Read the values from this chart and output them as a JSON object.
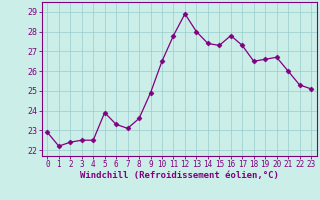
{
  "x": [
    0,
    1,
    2,
    3,
    4,
    5,
    6,
    7,
    8,
    9,
    10,
    11,
    12,
    13,
    14,
    15,
    16,
    17,
    18,
    19,
    20,
    21,
    22,
    23
  ],
  "y": [
    22.9,
    22.2,
    22.4,
    22.5,
    22.5,
    23.9,
    23.3,
    23.1,
    23.6,
    24.9,
    26.5,
    27.8,
    28.9,
    28.0,
    27.4,
    27.3,
    27.8,
    27.3,
    26.5,
    26.6,
    26.7,
    26.0,
    25.3,
    25.1
  ],
  "line_color": "#800080",
  "marker": "D",
  "markersize": 2.5,
  "linewidth": 0.9,
  "xlabel": "Windchill (Refroidissement éolien,°C)",
  "xlabel_fontsize": 6.5,
  "ylabel_ticks": [
    22,
    23,
    24,
    25,
    26,
    27,
    28,
    29
  ],
  "xtick_labels": [
    "0",
    "1",
    "2",
    "3",
    "4",
    "5",
    "6",
    "7",
    "8",
    "9",
    "10",
    "11",
    "12",
    "13",
    "14",
    "15",
    "16",
    "17",
    "18",
    "19",
    "20",
    "21",
    "22",
    "23"
  ],
  "ylim": [
    21.7,
    29.5
  ],
  "xlim": [
    -0.5,
    23.5
  ],
  "bg_color": "#cceee8",
  "grid_color": "#99cccc",
  "tick_color": "#800080",
  "spine_color": "#800080",
  "tick_fontsize": 5.5,
  "ytick_fontsize": 6.0
}
